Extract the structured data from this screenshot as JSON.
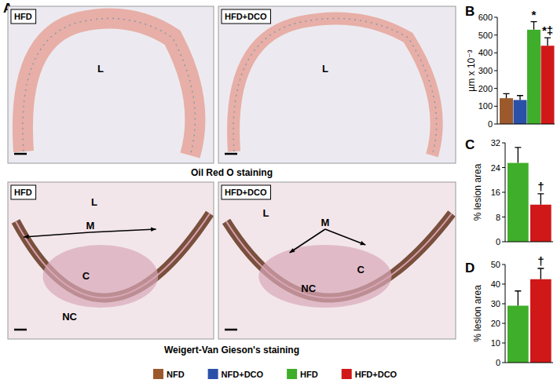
{
  "chart_data": [
    {
      "type": "bar",
      "title": "B",
      "y_label": "µm x 10⁻³",
      "categories": [
        "NFD",
        "NFD+DCO",
        "HFD",
        "HFD+DCO"
      ],
      "values": [
        145,
        135,
        530,
        440
      ],
      "errors": [
        25,
        25,
        45,
        45
      ],
      "colors": [
        "#9c5a2c",
        "#2b50a8",
        "#3fae2a",
        "#d01818"
      ],
      "annotations": [
        null,
        null,
        "*",
        "*‡"
      ],
      "ylim": [
        0,
        600
      ],
      "yticks": [
        0,
        100,
        200,
        300,
        400,
        500,
        600
      ],
      "tick_labels": "y",
      "legend": "bottom"
    },
    {
      "type": "bar",
      "title": "C",
      "y_label": "% lesion area",
      "categories": [
        null,
        null
      ],
      "values": [
        25.5,
        12
      ],
      "errors": [
        5,
        3.5
      ],
      "colors": [
        "#3fae2a",
        "#d01818"
      ],
      "annotations": [
        null,
        "†"
      ],
      "ylim": [
        0,
        32
      ],
      "yticks": [
        0,
        8,
        16,
        24,
        32
      ],
      "tick_labels": "y"
    },
    {
      "type": "bar",
      "title": "D",
      "y_label": "% lesion area",
      "categories": [
        null,
        null
      ],
      "values": [
        29,
        42.5
      ],
      "errors": [
        7.5,
        5.5
      ],
      "colors": [
        "#3fae2a",
        "#d01818"
      ],
      "annotations": [
        null,
        "†"
      ],
      "ylim": [
        0,
        50
      ],
      "yticks": [
        0,
        10,
        20,
        30,
        40,
        50
      ],
      "tick_labels": "y"
    }
  ],
  "panel_a": {
    "label": "A",
    "rows": [
      {
        "caption": "Oil Red O staining",
        "images": [
          {
            "title": "HFD",
            "marks": [
              "L"
            ]
          },
          {
            "title": "HFD+DCO",
            "marks": [
              "L"
            ]
          }
        ]
      },
      {
        "caption": "Weigert-Van Gieson's staining",
        "images": [
          {
            "title": "HFD",
            "marks": [
              "L",
              "M",
              "C",
              "NC"
            ]
          },
          {
            "title": "HFD+DCO",
            "marks": [
              "L",
              "M",
              "C",
              "NC"
            ]
          }
        ]
      }
    ]
  }
}
